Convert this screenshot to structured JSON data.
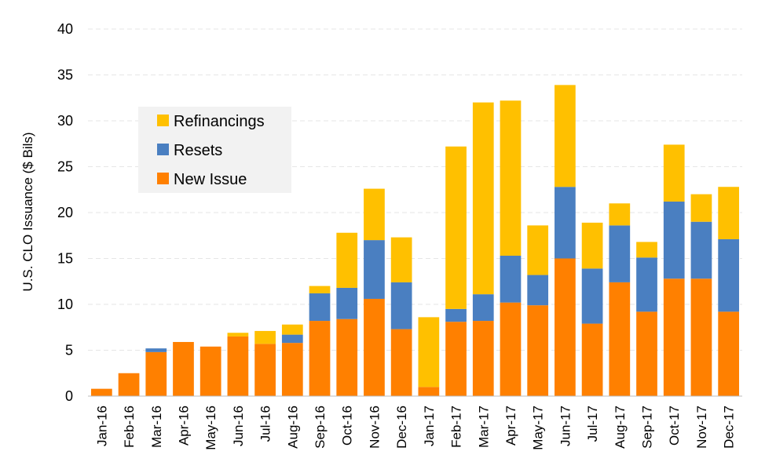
{
  "chart_data": {
    "type": "bar",
    "stacked": true,
    "title": "",
    "xlabel": "",
    "ylabel": "U.S. CLO Issuance ($ Bils)",
    "ylim": [
      0,
      40
    ],
    "yticks": [
      0,
      5,
      10,
      15,
      20,
      25,
      30,
      35,
      40
    ],
    "grid": true,
    "legend_position": "upper-left",
    "categories": [
      "Jan-16",
      "Feb-16",
      "Mar-16",
      "Apr-16",
      "May-16",
      "Jun-16",
      "Jul-16",
      "Aug-16",
      "Sep-16",
      "Oct-16",
      "Nov-16",
      "Dec-16",
      "Jan-17",
      "Feb-17",
      "Mar-17",
      "Apr-17",
      "May-17",
      "Jun-17",
      "Jul-17",
      "Aug-17",
      "Sep-17",
      "Oct-17",
      "Nov-17",
      "Dec-17"
    ],
    "series": [
      {
        "name": "New Issue",
        "color": "#ff8000",
        "values": [
          0.8,
          2.5,
          4.8,
          5.9,
          5.4,
          6.5,
          5.7,
          5.8,
          8.2,
          8.4,
          10.6,
          7.3,
          1.0,
          8.1,
          8.2,
          10.2,
          9.9,
          15.0,
          7.9,
          12.4,
          9.2,
          12.8,
          12.8,
          9.2
        ]
      },
      {
        "name": "Resets",
        "color": "#4a7fc1",
        "values": [
          0,
          0,
          0.4,
          0,
          0,
          0,
          0,
          0.9,
          3.0,
          3.4,
          6.4,
          5.1,
          0,
          1.4,
          2.9,
          5.1,
          3.3,
          7.8,
          6.0,
          6.2,
          5.9,
          8.4,
          6.2,
          7.9
        ]
      },
      {
        "name": "Refinancings",
        "color": "#ffc000",
        "values": [
          0,
          0,
          0,
          0,
          0,
          0.4,
          1.4,
          1.1,
          0.8,
          6.0,
          5.6,
          4.9,
          7.6,
          17.7,
          20.9,
          16.9,
          5.4,
          11.1,
          5.0,
          2.4,
          1.7,
          6.2,
          3.0,
          5.7
        ]
      }
    ],
    "legend_order": [
      "Refinancings",
      "Resets",
      "New Issue"
    ]
  }
}
